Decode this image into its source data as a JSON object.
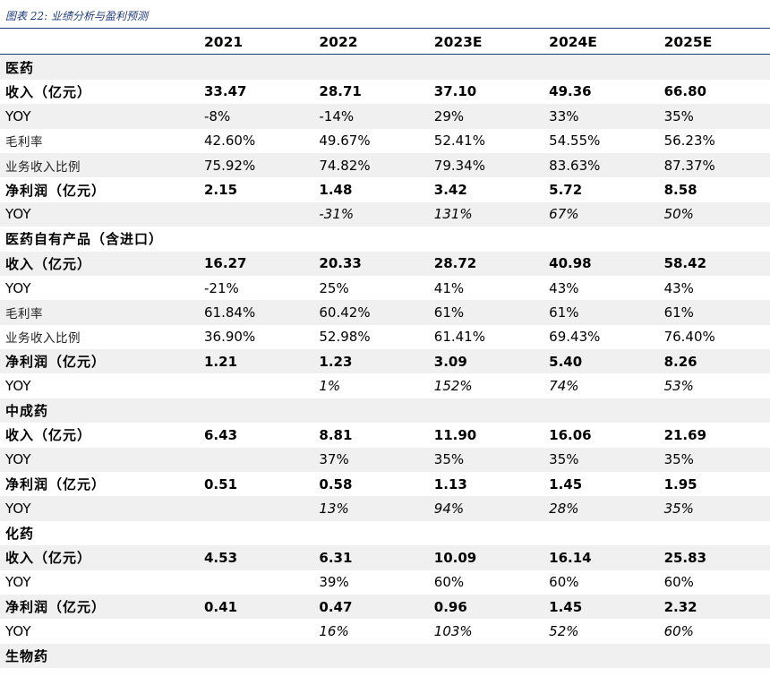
{
  "caption": "图表 22:  业绩分析与盈利预测",
  "header": [
    "",
    "2021",
    "2022",
    "2023E",
    "2024E",
    "2025E"
  ],
  "rows": [
    {
      "label": "医药",
      "values": [
        "",
        "",
        "",
        "",
        ""
      ],
      "style": "section"
    },
    {
      "label": "收入（亿元）",
      "values": [
        "33.47",
        "28.71",
        "37.10",
        "49.36",
        "66.80"
      ],
      "style": "bold"
    },
    {
      "label": "YOY",
      "values": [
        "-8%",
        "-14%",
        "29%",
        "33%",
        "35%"
      ],
      "style": "plain"
    },
    {
      "label": "毛利率",
      "values": [
        "42.60%",
        "49.67%",
        "52.41%",
        "54.55%",
        "56.23%"
      ],
      "style": "small"
    },
    {
      "label": "业务收入比例",
      "values": [
        "75.92%",
        "74.82%",
        "79.34%",
        "83.63%",
        "87.37%"
      ],
      "style": "small"
    },
    {
      "label": "净利润（亿元）",
      "values": [
        "2.15",
        "1.48",
        "3.42",
        "5.72",
        "8.58"
      ],
      "style": "bold"
    },
    {
      "label": "YOY",
      "values": [
        "",
        "-31%",
        "131%",
        "67%",
        "50%"
      ],
      "style": "italic"
    },
    {
      "label": "医药自有产品（含进口）",
      "values": [
        "",
        "",
        "",
        "",
        ""
      ],
      "style": "section"
    },
    {
      "label": "收入（亿元）",
      "values": [
        "16.27",
        "20.33",
        "28.72",
        "40.98",
        "58.42"
      ],
      "style": "bold"
    },
    {
      "label": "YOY",
      "values": [
        "-21%",
        "25%",
        "41%",
        "43%",
        "43%"
      ],
      "style": "plain"
    },
    {
      "label": "毛利率",
      "values": [
        "61.84%",
        "60.42%",
        "61%",
        "61%",
        "61%"
      ],
      "style": "small"
    },
    {
      "label": "业务收入比例",
      "values": [
        "36.90%",
        "52.98%",
        "61.41%",
        "69.43%",
        "76.40%"
      ],
      "style": "small"
    },
    {
      "label": "净利润（亿元）",
      "values": [
        "1.21",
        "1.23",
        "3.09",
        "5.40",
        "8.26"
      ],
      "style": "bold"
    },
    {
      "label": "YOY",
      "values": [
        "",
        "1%",
        "152%",
        "74%",
        "53%"
      ],
      "style": "italic"
    },
    {
      "label": "中成药",
      "values": [
        "",
        "",
        "",
        "",
        ""
      ],
      "style": "section"
    },
    {
      "label": "收入（亿元）",
      "values": [
        "6.43",
        "8.81",
        "11.90",
        "16.06",
        "21.69"
      ],
      "style": "bold"
    },
    {
      "label": "YOY",
      "values": [
        "",
        "37%",
        "35%",
        "35%",
        "35%"
      ],
      "style": "plain"
    },
    {
      "label": "净利润（亿元）",
      "values": [
        "0.51",
        "0.58",
        "1.13",
        "1.45",
        "1.95"
      ],
      "style": "bold"
    },
    {
      "label": "YOY",
      "values": [
        "",
        "13%",
        "94%",
        "28%",
        "35%"
      ],
      "style": "italic"
    },
    {
      "label": "化药",
      "values": [
        "",
        "",
        "",
        "",
        ""
      ],
      "style": "section"
    },
    {
      "label": "收入（亿元）",
      "values": [
        "4.53",
        "6.31",
        "10.09",
        "16.14",
        "25.83"
      ],
      "style": "bold"
    },
    {
      "label": "YOY",
      "values": [
        "",
        "39%",
        "60%",
        "60%",
        "60%"
      ],
      "style": "plain"
    },
    {
      "label": "净利润（亿元）",
      "values": [
        "0.41",
        "0.47",
        "0.96",
        "1.45",
        "2.32"
      ],
      "style": "bold"
    },
    {
      "label": "YOY",
      "values": [
        "",
        "16%",
        "103%",
        "52%",
        "60%"
      ],
      "style": "italic"
    },
    {
      "label": "生物药",
      "values": [
        "",
        "",
        "",
        "",
        ""
      ],
      "style": "section"
    }
  ]
}
